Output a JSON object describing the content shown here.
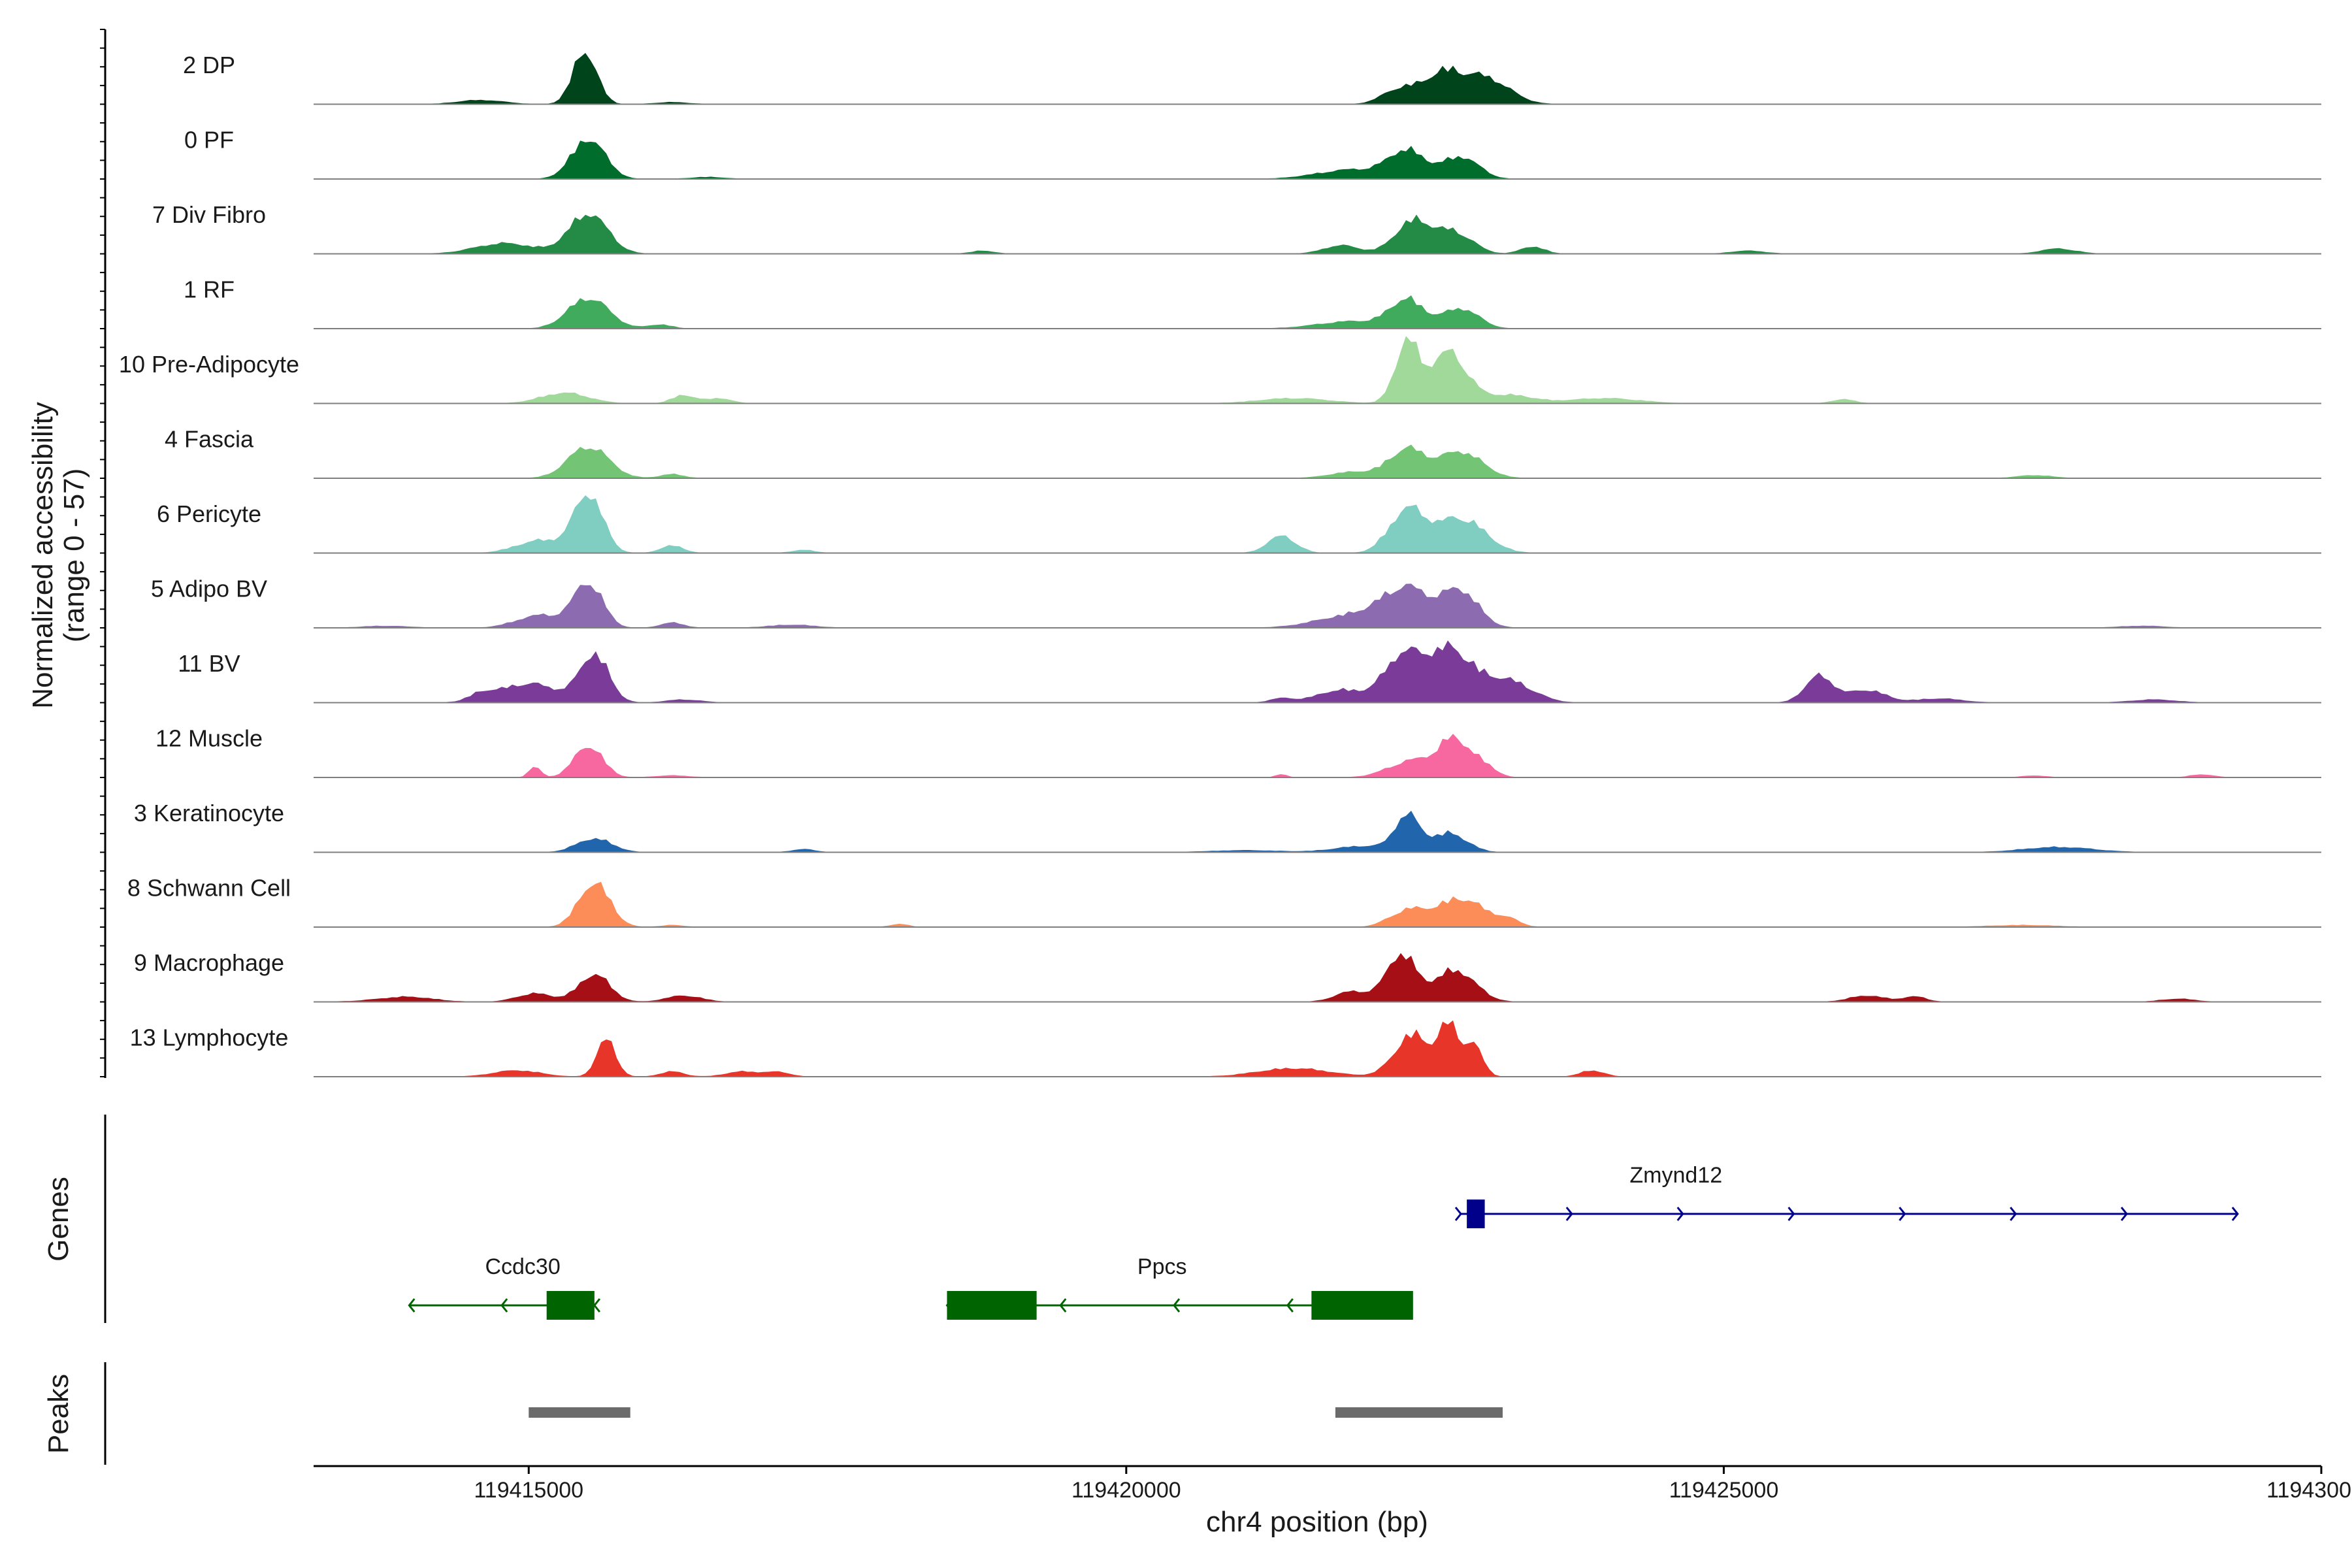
{
  "chart_data": {
    "type": "area",
    "title": "",
    "xlabel": "chr4 position (bp)",
    "ylabel": "Normalized accessibility",
    "ylabel_range": "(range 0 - 57)",
    "xlim": [
      119413200,
      119430000
    ],
    "ylim": [
      0,
      57
    ],
    "x_ticks": [
      119415000,
      119420000,
      119425000,
      119430000
    ],
    "x_tick_labels": [
      "119415000",
      "119420000",
      "119425000",
      "119430000"
    ],
    "series": [
      {
        "name": "2 DP",
        "color": "#00441b",
        "peaks": [
          [
            119415470,
            50,
            100
          ],
          [
            119422300,
            15,
            150
          ],
          [
            119422650,
            26,
            150
          ],
          [
            119423000,
            25,
            200
          ],
          [
            119414600,
            4,
            200
          ],
          [
            119416200,
            2,
            150
          ]
        ]
      },
      {
        "name": "0 PF",
        "color": "#006d2c",
        "peaks": [
          [
            119415500,
            38,
            140
          ],
          [
            119422350,
            25,
            150
          ],
          [
            119422800,
            21,
            150
          ],
          [
            119421900,
            9,
            300
          ],
          [
            119416500,
            2,
            150
          ]
        ]
      },
      {
        "name": "7 Div Fibro",
        "color": "#238b45",
        "peaks": [
          [
            119415500,
            38,
            160
          ],
          [
            119414800,
            10,
            250
          ],
          [
            119422400,
            31,
            150
          ],
          [
            119422750,
            20,
            150
          ],
          [
            119423400,
            7,
            100
          ],
          [
            119421800,
            8,
            150
          ],
          [
            119425200,
            3,
            150
          ],
          [
            119427800,
            5,
            150
          ],
          [
            119418800,
            3,
            100
          ]
        ]
      },
      {
        "name": "1 RF",
        "color": "#41ab5d",
        "peaks": [
          [
            119415500,
            29,
            170
          ],
          [
            119422350,
            26,
            140
          ],
          [
            119422800,
            19,
            150
          ],
          [
            119421900,
            7,
            300
          ],
          [
            119416100,
            4,
            100
          ]
        ]
      },
      {
        "name": "10 Pre-Adipocyte",
        "color": "#a1d99b",
        "peaks": [
          [
            119422350,
            57,
            100
          ],
          [
            119422700,
            48,
            150
          ],
          [
            119423200,
            8,
            200
          ],
          [
            119415300,
            10,
            200
          ],
          [
            119416300,
            8,
            100
          ],
          [
            119416600,
            5,
            100
          ],
          [
            119424000,
            5,
            300
          ],
          [
            119421400,
            5,
            300
          ],
          [
            119426000,
            4,
            100
          ]
        ]
      },
      {
        "name": "4 Fascia",
        "color": "#74c476",
        "peaks": [
          [
            119415500,
            30,
            170
          ],
          [
            119422350,
            27,
            150
          ],
          [
            119422800,
            25,
            180
          ],
          [
            119421900,
            6,
            200
          ],
          [
            119416200,
            4,
            100
          ],
          [
            119427600,
            3,
            150
          ]
        ]
      },
      {
        "name": "6 Pericyte",
        "color": "#80cdc1",
        "peaks": [
          [
            119415500,
            55,
            120
          ],
          [
            119415100,
            12,
            200
          ],
          [
            119422350,
            40,
            150
          ],
          [
            119422800,
            33,
            200
          ],
          [
            119421300,
            16,
            120
          ],
          [
            119416200,
            7,
            100
          ],
          [
            119417300,
            3,
            100
          ]
        ]
      },
      {
        "name": "5 Adipo BV",
        "color": "#8c6bb1",
        "peaks": [
          [
            119415500,
            42,
            120
          ],
          [
            119415100,
            12,
            200
          ],
          [
            119422350,
            35,
            200
          ],
          [
            119422800,
            34,
            150
          ],
          [
            119421900,
            12,
            300
          ],
          [
            119416200,
            5,
            100
          ],
          [
            119417200,
            3,
            200
          ],
          [
            119413800,
            2,
            200
          ],
          [
            119428500,
            2,
            200
          ]
        ]
      },
      {
        "name": "11 BV",
        "color": "#7a3c98",
        "peaks": [
          [
            119415550,
            45,
            120
          ],
          [
            119415000,
            18,
            250
          ],
          [
            119422300,
            40,
            150
          ],
          [
            119422700,
            50,
            200
          ],
          [
            119423200,
            20,
            200
          ],
          [
            119421800,
            12,
            200
          ],
          [
            119425800,
            25,
            120
          ],
          [
            119426200,
            12,
            150
          ],
          [
            119414600,
            6,
            100
          ],
          [
            119421300,
            4,
            100
          ],
          [
            119416300,
            3,
            150
          ],
          [
            119426800,
            4,
            200
          ],
          [
            119428600,
            3,
            200
          ]
        ]
      },
      {
        "name": "12 Muscle",
        "color": "#f768a1",
        "peaks": [
          [
            119415500,
            30,
            120
          ],
          [
            119415050,
            10,
            50
          ],
          [
            119422400,
            16,
            200
          ],
          [
            119422750,
            34,
            130
          ],
          [
            119423000,
            10,
            100
          ],
          [
            119421300,
            3,
            50
          ],
          [
            119416200,
            2,
            150
          ],
          [
            119427600,
            2,
            100
          ],
          [
            119429000,
            3,
            100
          ]
        ]
      },
      {
        "name": "3 Keratinocyte",
        "color": "#2166ac",
        "peaks": [
          [
            119415550,
            13,
            150
          ],
          [
            119422350,
            33,
            100
          ],
          [
            119422700,
            18,
            150
          ],
          [
            119422000,
            6,
            250
          ],
          [
            119417300,
            3,
            100
          ],
          [
            119427800,
            5,
            300
          ],
          [
            119421000,
            2,
            300
          ]
        ]
      },
      {
        "name": "8 Schwann Cell",
        "color": "#fc8d59",
        "peaks": [
          [
            119415550,
            42,
            130
          ],
          [
            119422350,
            15,
            150
          ],
          [
            119422800,
            27,
            200
          ],
          [
            119423200,
            6,
            100
          ],
          [
            119418100,
            3,
            80
          ],
          [
            119416200,
            2,
            100
          ],
          [
            119427500,
            2,
            300
          ]
        ]
      },
      {
        "name": "9 Macrophage",
        "color": "#a50f15",
        "peaks": [
          [
            119415550,
            26,
            130
          ],
          [
            119415050,
            8,
            150
          ],
          [
            119422300,
            45,
            120
          ],
          [
            119422750,
            30,
            170
          ],
          [
            119421900,
            10,
            150
          ],
          [
            119416300,
            6,
            150
          ],
          [
            119426200,
            6,
            150
          ],
          [
            119426600,
            5,
            100
          ],
          [
            119414000,
            3,
            200
          ],
          [
            119428800,
            3,
            150
          ],
          [
            119413900,
            2,
            300
          ]
        ]
      },
      {
        "name": "13 Lymphocyte",
        "color": "#e8352a",
        "peaks": [
          [
            119415650,
            35,
            80
          ],
          [
            119414900,
            6,
            200
          ],
          [
            119422400,
            40,
            150
          ],
          [
            119422700,
            45,
            80
          ],
          [
            119422900,
            30,
            80
          ],
          [
            119421400,
            8,
            300
          ],
          [
            119416200,
            5,
            100
          ],
          [
            119416800,
            5,
            150
          ],
          [
            119417100,
            4,
            100
          ],
          [
            119423900,
            6,
            100
          ]
        ]
      }
    ],
    "genes": [
      {
        "name": "Zmynd12",
        "strand": "+",
        "color": "#00008b",
        "start": 119422800,
        "end": 119429300,
        "label_pos": 119424600,
        "exons": [
          [
            119422850,
            119423000
          ]
        ]
      },
      {
        "name": "Ccdc30",
        "strand": "-",
        "color": "#006400",
        "start": 119414000,
        "end": 119415550,
        "label_pos": 119414950,
        "exons": [
          [
            119415150,
            119415550
          ]
        ]
      },
      {
        "name": "Ppcs",
        "strand": "-",
        "color": "#006400",
        "start": 119418500,
        "end": 119422300,
        "label_pos": 119420300,
        "exons": [
          [
            119418500,
            119419250
          ],
          [
            119421550,
            119422400
          ]
        ]
      }
    ],
    "gene_track_label": "Genes",
    "peaks_track": {
      "label": "Peaks",
      "color": "#6b6b6b",
      "intervals": [
        [
          119415000,
          119415850
        ],
        [
          119421750,
          119423150
        ]
      ]
    }
  }
}
